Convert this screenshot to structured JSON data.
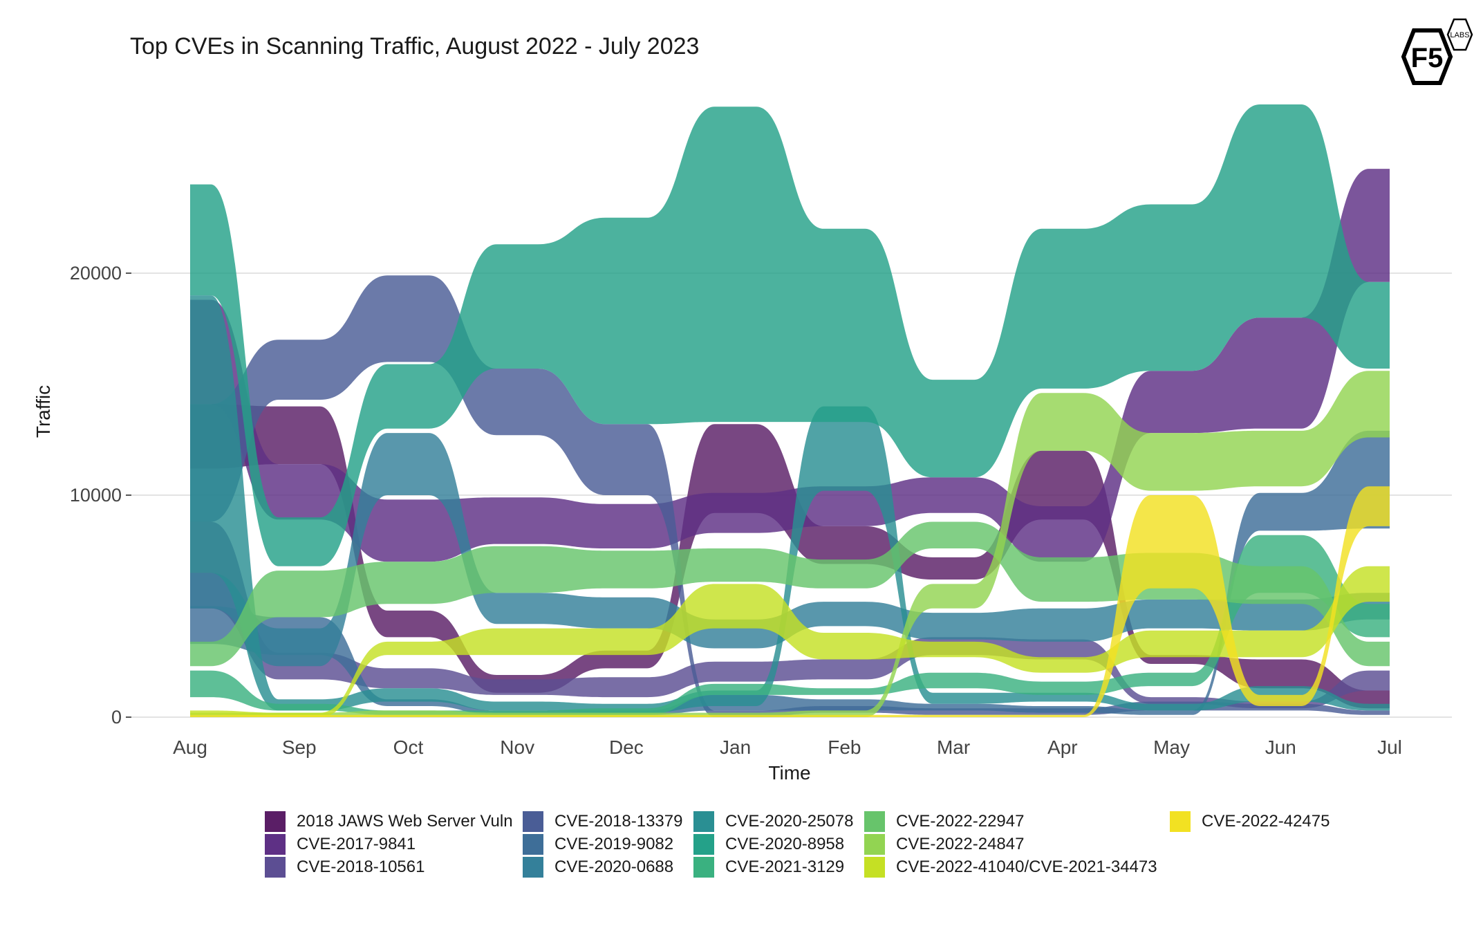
{
  "logo": {
    "brand": "F5",
    "sub": "LABS"
  },
  "chart_data": {
    "type": "area",
    "title": "Top CVEs in Scanning Traffic, August 2022 - July 2023",
    "xlabel": "Time",
    "ylabel": "Traffic",
    "categories": [
      "Aug",
      "Sep",
      "Oct",
      "Nov",
      "Dec",
      "Jan",
      "Feb",
      "Mar",
      "Apr",
      "May",
      "Jun",
      "Jul"
    ],
    "ylim": [
      0,
      28000
    ],
    "y_ticks": [
      0,
      10000,
      20000
    ],
    "y_tick_labels": [
      "0",
      "10000",
      "20000"
    ],
    "grid": true,
    "legend_position": "bottom",
    "series": [
      {
        "name": "2018 JAWS Web Server Vuln",
        "color": "#5a1e66",
        "bands": [
          [
            11200,
            14100
          ],
          [
            11400,
            14000
          ],
          [
            3600,
            4800
          ],
          [
            1100,
            1900
          ],
          [
            2200,
            3000
          ],
          [
            9200,
            13200
          ],
          [
            6900,
            8600
          ],
          [
            6200,
            7200
          ],
          [
            8900,
            12000
          ],
          [
            2400,
            2800
          ],
          [
            1300,
            2600
          ],
          [
            400,
            1200
          ]
        ]
      },
      {
        "name": "CVE-2017-9841",
        "color": "#5e3085",
        "bands": [
          [
            14100,
            18800
          ],
          [
            8900,
            11400
          ],
          [
            7000,
            9800
          ],
          [
            7800,
            9900
          ],
          [
            7600,
            9600
          ],
          [
            8300,
            10100
          ],
          [
            8600,
            10400
          ],
          [
            9200,
            10800
          ],
          [
            7000,
            9500
          ],
          [
            12800,
            15600
          ],
          [
            13000,
            18000
          ],
          [
            19600,
            24700
          ]
        ]
      },
      {
        "name": "CVE-2018-10561",
        "color": "#5c4e93",
        "bands": [
          [
            4900,
            8800
          ],
          [
            1700,
            2900
          ],
          [
            1300,
            2200
          ],
          [
            1000,
            1700
          ],
          [
            900,
            1800
          ],
          [
            1600,
            2500
          ],
          [
            1700,
            2600
          ],
          [
            2800,
            3600
          ],
          [
            2600,
            3500
          ],
          [
            600,
            900
          ],
          [
            400,
            700
          ],
          [
            1200,
            2100
          ]
        ]
      },
      {
        "name": "CVE-2018-13379",
        "color": "#4a5d96",
        "bands": [
          [
            8800,
            14100
          ],
          [
            14300,
            17000
          ],
          [
            16000,
            19900
          ],
          [
            12700,
            15700
          ],
          [
            10000,
            13200
          ],
          [
            0,
            300
          ],
          [
            200,
            500
          ],
          [
            100,
            400
          ],
          [
            100,
            400
          ],
          [
            300,
            700
          ],
          [
            300,
            600
          ],
          [
            100,
            300
          ]
        ]
      },
      {
        "name": "CVE-2019-9082",
        "color": "#3e6e98",
        "bands": [
          [
            3300,
            5000
          ],
          [
            2800,
            4500
          ],
          [
            500,
            800
          ],
          [
            100,
            300
          ],
          [
            100,
            300
          ],
          [
            300,
            1000
          ],
          [
            300,
            800
          ],
          [
            300,
            600
          ],
          [
            200,
            500
          ],
          [
            100,
            300
          ],
          [
            8400,
            10100
          ],
          [
            8500,
            12900
          ]
        ]
      },
      {
        "name": "CVE-2020-0688",
        "color": "#34809a",
        "bands": [
          [
            4900,
            6500
          ],
          [
            2300,
            4000
          ],
          [
            10000,
            12800
          ],
          [
            4200,
            5600
          ],
          [
            4000,
            5400
          ],
          [
            3100,
            4400
          ],
          [
            4100,
            5200
          ],
          [
            3500,
            4700
          ],
          [
            3400,
            4900
          ],
          [
            4000,
            5300
          ],
          [
            3900,
            5300
          ],
          [
            4400,
            5600
          ]
        ]
      },
      {
        "name": "CVE-2020-25078",
        "color": "#2a8f93",
        "bands": [
          [
            6500,
            19000
          ],
          [
            300,
            800
          ],
          [
            700,
            1300
          ],
          [
            300,
            700
          ],
          [
            200,
            600
          ],
          [
            500,
            1200
          ],
          [
            10200,
            14000
          ],
          [
            600,
            1100
          ],
          [
            700,
            1100
          ],
          [
            300,
            600
          ],
          [
            700,
            1400
          ],
          [
            300,
            600
          ]
        ]
      },
      {
        "name": "CVE-2020-8958",
        "color": "#24a189",
        "bands": [
          [
            19000,
            24000
          ],
          [
            6800,
            9000
          ],
          [
            13000,
            15900
          ],
          [
            15700,
            21300
          ],
          [
            13200,
            22500
          ],
          [
            13300,
            27500
          ],
          [
            13300,
            22000
          ],
          [
            10800,
            15200
          ],
          [
            14800,
            22000
          ],
          [
            15600,
            23100
          ],
          [
            18000,
            27600
          ],
          [
            15700,
            19600
          ]
        ]
      },
      {
        "name": "CVE-2021-3129",
        "color": "#3ab180",
        "bands": [
          [
            900,
            2100
          ],
          [
            300,
            600
          ],
          [
            100,
            300
          ],
          [
            100,
            300
          ],
          [
            100,
            400
          ],
          [
            1000,
            1500
          ],
          [
            1000,
            1300
          ],
          [
            1300,
            2000
          ],
          [
            1000,
            1600
          ],
          [
            1400,
            2000
          ],
          [
            5600,
            8200
          ],
          [
            3600,
            5100
          ]
        ]
      },
      {
        "name": "CVE-2022-22947",
        "color": "#67c46b",
        "bands": [
          [
            2300,
            3400
          ],
          [
            4500,
            6600
          ],
          [
            5100,
            7000
          ],
          [
            5600,
            7700
          ],
          [
            5800,
            7500
          ],
          [
            6100,
            7600
          ],
          [
            5800,
            7100
          ],
          [
            7600,
            8800
          ],
          [
            5200,
            7200
          ],
          [
            5300,
            7400
          ],
          [
            5100,
            6800
          ],
          [
            2300,
            3400
          ]
        ]
      },
      {
        "name": "CVE-2022-24847",
        "color": "#92d452",
        "bands": [
          [
            0,
            200
          ],
          [
            0,
            200
          ],
          [
            0,
            300
          ],
          [
            0,
            200
          ],
          [
            0,
            200
          ],
          [
            0,
            200
          ],
          [
            0,
            300
          ],
          [
            4900,
            6000
          ],
          [
            12000,
            14600
          ],
          [
            10200,
            12800
          ],
          [
            10400,
            12900
          ],
          [
            12600,
            15600
          ]
        ]
      },
      {
        "name": "CVE-2022-41040/CVE-2021-34473",
        "color": "#c5e024",
        "bands": [
          [
            100,
            300
          ],
          [
            0,
            200
          ],
          [
            2800,
            3400
          ],
          [
            2800,
            4000
          ],
          [
            2800,
            4000
          ],
          [
            4000,
            6000
          ],
          [
            2600,
            3800
          ],
          [
            2700,
            3400
          ],
          [
            2000,
            2700
          ],
          [
            2700,
            3900
          ],
          [
            2700,
            3900
          ],
          [
            5200,
            6800
          ]
        ]
      },
      {
        "name": "CVE-2022-42475",
        "color": "#f2e122",
        "bands": [
          [
            0,
            100
          ],
          [
            0,
            100
          ],
          [
            0,
            100
          ],
          [
            0,
            100
          ],
          [
            0,
            100
          ],
          [
            0,
            100
          ],
          [
            0,
            100
          ],
          [
            0,
            100
          ],
          [
            0,
            100
          ],
          [
            5800,
            10000
          ],
          [
            500,
            1000
          ],
          [
            8600,
            10400
          ]
        ]
      }
    ]
  }
}
